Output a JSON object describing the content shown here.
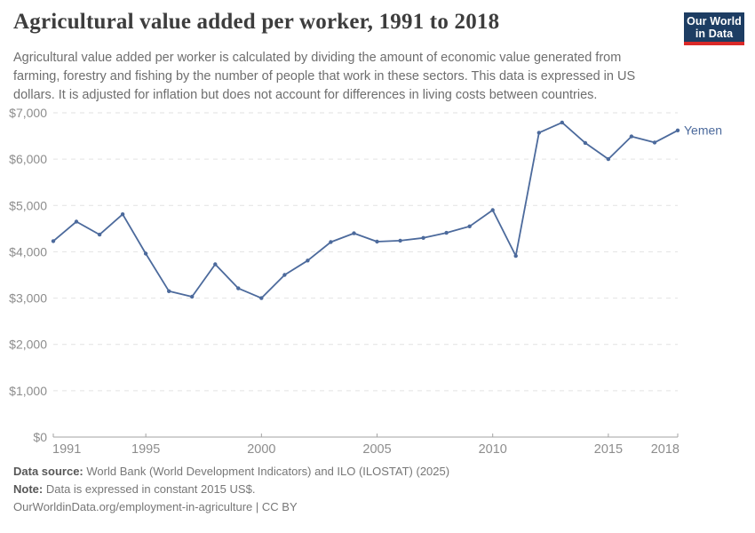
{
  "header": {
    "title": "Agricultural value added per worker, 1991 to 2018",
    "subtitle": "Agricultural value added per worker is calculated by dividing the amount of economic value generated from farming, forestry and fishing by the number of people that work in these sectors. This data is expressed in US dollars. It is adjusted for inflation but does not account for differences in living costs between countries.",
    "logo": {
      "line1": "Our World",
      "line2": "in Data"
    }
  },
  "chart_data": {
    "type": "line",
    "title": "Agricultural value added per worker, 1991 to 2018",
    "x": [
      1991,
      1992,
      1993,
      1994,
      1995,
      1996,
      1997,
      1998,
      1999,
      2000,
      2001,
      2002,
      2003,
      2004,
      2005,
      2006,
      2007,
      2008,
      2009,
      2010,
      2011,
      2012,
      2013,
      2014,
      2015,
      2016,
      2017,
      2018
    ],
    "series": [
      {
        "name": "Yemen",
        "color": "#4c6a9c",
        "values": [
          4230,
          4650,
          4370,
          4810,
          3960,
          3150,
          3030,
          3730,
          3210,
          3000,
          3500,
          3810,
          4210,
          4400,
          4220,
          4240,
          4300,
          4410,
          4550,
          4900,
          3910,
          6570,
          6790,
          6350,
          6000,
          6490,
          6360,
          6620
        ]
      }
    ],
    "xlim": [
      1991,
      2018
    ],
    "ylim": [
      0,
      7000
    ],
    "x_ticks": [
      1991,
      1995,
      2000,
      2005,
      2010,
      2015,
      2018
    ],
    "y_ticks": [
      0,
      1000,
      2000,
      3000,
      4000,
      5000,
      6000,
      7000
    ],
    "y_tick_prefix": "$",
    "grid": "horizontal-dashed",
    "legend": "end-of-line-label",
    "end_label": "Yemen"
  },
  "colors": {
    "line": "#4c6a9c",
    "gridline": "#e2e2e2",
    "axis": "#a3a3a3",
    "tick_label": "#8d8d8d",
    "series_label": "#4c6a9c",
    "logo_bg": "#1d3d63",
    "logo_accent": "#da2928"
  },
  "footer": {
    "data_source_label": "Data source:",
    "data_source": "World Bank (World Development Indicators) and ILO (ILOSTAT) (2025)",
    "note_label": "Note:",
    "note": "Data is expressed in constant 2015 US$.",
    "url": "OurWorldinData.org/employment-in-agriculture",
    "separator": "|",
    "license": "CC BY"
  }
}
